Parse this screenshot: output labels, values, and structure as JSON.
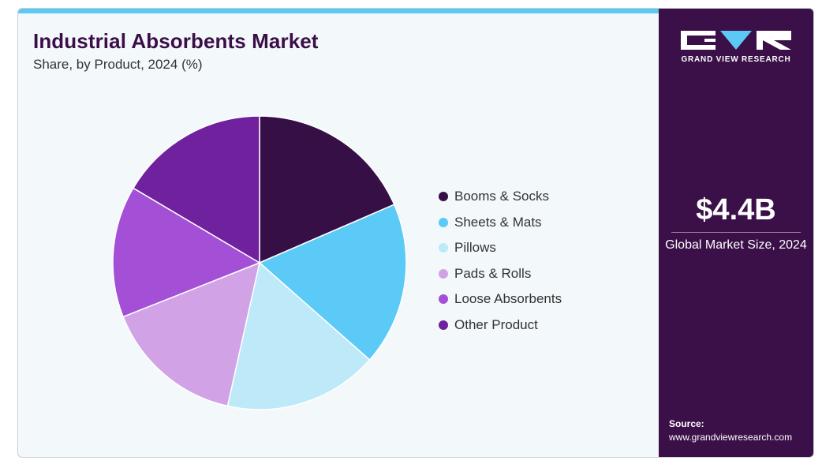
{
  "header": {
    "title": "Industrial Absorbents Market",
    "subtitle": "Share, by Product, 2024 (%)"
  },
  "chart_data": {
    "type": "pie",
    "title": "Industrial Absorbents Market",
    "subtitle": "Share, by Product, 2024 (%)",
    "categories": [
      "Booms & Socks",
      "Sheets & Mats",
      "Pillows",
      "Pads & Rolls",
      "Loose Absorbents",
      "Other Product"
    ],
    "values": [
      18.5,
      18.0,
      17.0,
      15.5,
      14.5,
      16.5
    ],
    "colors": [
      "#350f45",
      "#5bcaf6",
      "#bde9f9",
      "#d1a3e6",
      "#a350d6",
      "#6f219e"
    ],
    "legend_position": "right"
  },
  "legend": {
    "items": [
      {
        "label": "Booms & Socks",
        "color": "#350f45"
      },
      {
        "label": "Sheets & Mats",
        "color": "#5bcaf6"
      },
      {
        "label": "Pillows",
        "color": "#bde9f9"
      },
      {
        "label": "Pads & Rolls",
        "color": "#d1a3e6"
      },
      {
        "label": "Loose Absorbents",
        "color": "#a350d6"
      },
      {
        "label": "Other Product",
        "color": "#6f219e"
      }
    ]
  },
  "side_panel": {
    "brand": "GRAND VIEW RESEARCH",
    "logo_icon": "gvr-logo-icon",
    "market_size_value": "$4.4B",
    "market_size_label": "Global Market Size, 2024",
    "source_label": "Source:",
    "source_url": "www.grandviewresearch.com"
  },
  "colors": {
    "accent": "#5cc8f4",
    "panel": "#3b1049",
    "title": "#3b0e48",
    "background": "#f3f8fb"
  }
}
